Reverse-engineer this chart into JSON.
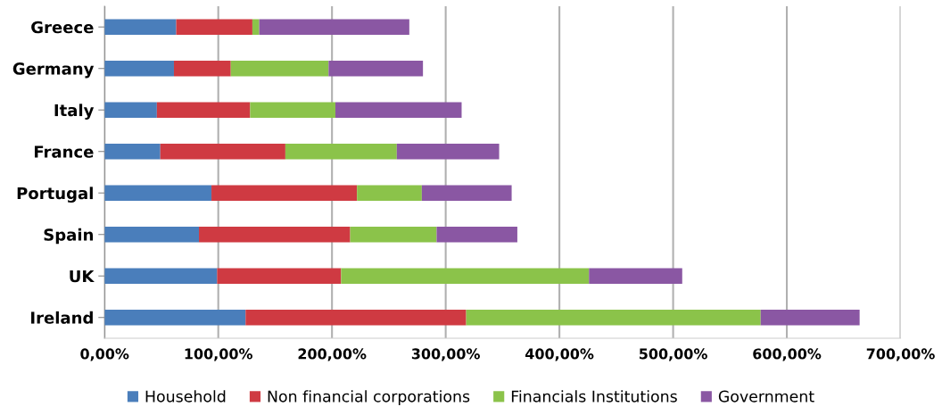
{
  "chart_data": {
    "type": "bar",
    "orientation": "horizontal",
    "stacked": true,
    "categories": [
      "Greece",
      "Germany",
      "Italy",
      "France",
      "Portugal",
      "Spain",
      "UK",
      "Ireland"
    ],
    "series": [
      {
        "name": "Household",
        "color": "#4a7ebb",
        "values": [
          63,
          61,
          46,
          49,
          94,
          83,
          99,
          124
        ]
      },
      {
        "name": "Non financial corporations",
        "color": "#cf3a42",
        "values": [
          67,
          50,
          82,
          110,
          128,
          133,
          109,
          194
        ]
      },
      {
        "name": "Financials Institutions",
        "color": "#8bc34a",
        "values": [
          6,
          86,
          75,
          98,
          57,
          76,
          218,
          259
        ]
      },
      {
        "name": "Government",
        "color": "#8a57a3",
        "values": [
          132,
          83,
          111,
          90,
          79,
          71,
          82,
          87
        ]
      }
    ],
    "xlim": [
      0,
      700
    ],
    "xticks": [
      {
        "value": 0,
        "label": "0,00%"
      },
      {
        "value": 100,
        "label": "100,00%"
      },
      {
        "value": 200,
        "label": "200,00%"
      },
      {
        "value": 300,
        "label": "300,00%"
      },
      {
        "value": 400,
        "label": "400,00%"
      },
      {
        "value": 500,
        "label": "500,00%"
      },
      {
        "value": 600,
        "label": "600,00%"
      },
      {
        "value": 700,
        "label": "700,00%"
      }
    ],
    "grid": "x",
    "legend": "bottom"
  }
}
